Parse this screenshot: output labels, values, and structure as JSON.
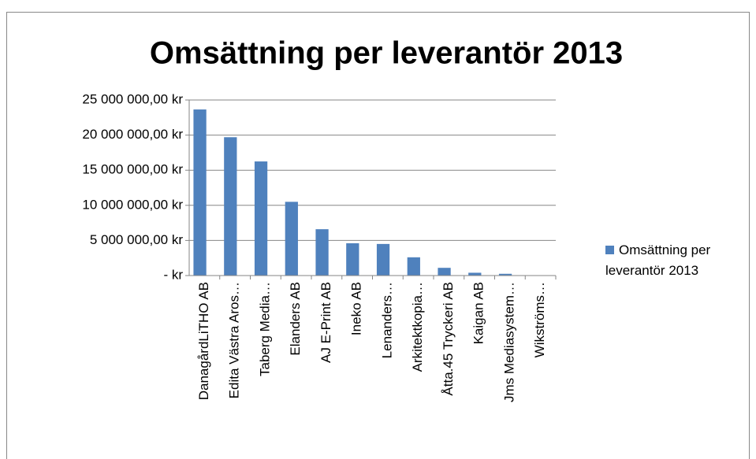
{
  "chart_data": {
    "type": "bar",
    "title": "Omsättning per leverantör 2013",
    "categories": [
      "DanagårdLiTHO AB",
      "Edita Västra Aros…",
      "Taberg Media…",
      "Elanders AB",
      "AJ E-Print AB",
      "Ineko AB",
      "Lenanders…",
      "Arkitektkopia…",
      "Åtta.45 Tryckeri AB",
      "Kaigan AB",
      "Jms Mediasystem…",
      "Wikströms…"
    ],
    "series": [
      {
        "name": "Omsättning per leverantör 2013",
        "color": "#4f81bd",
        "values": [
          23650000,
          19700000,
          16250000,
          10500000,
          6600000,
          4600000,
          4500000,
          2600000,
          1100000,
          400000,
          250000,
          50000
        ]
      }
    ],
    "ylim": [
      0,
      25000000
    ],
    "yticks": [
      {
        "value": 0,
        "label": "-   kr"
      },
      {
        "value": 5000000,
        "label": "5 000 000,00 kr"
      },
      {
        "value": 10000000,
        "label": "10 000 000,00 kr"
      },
      {
        "value": 15000000,
        "label": "15 000 000,00 kr"
      },
      {
        "value": 20000000,
        "label": "20 000 000,00 kr"
      },
      {
        "value": 25000000,
        "label": "25 000 000,00 kr"
      }
    ],
    "grid": true,
    "legend": "right"
  }
}
